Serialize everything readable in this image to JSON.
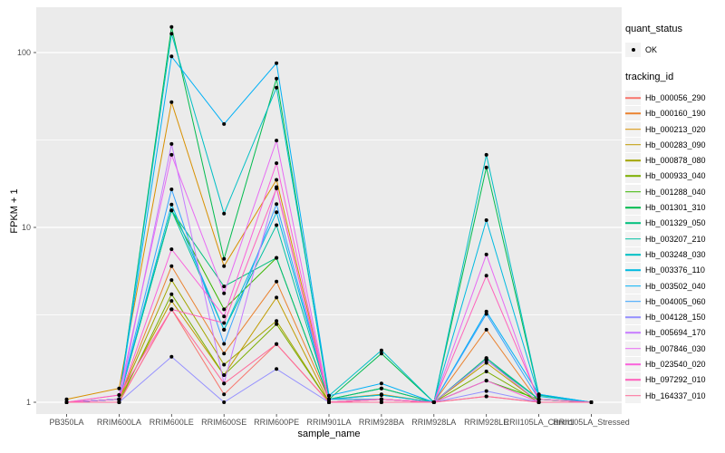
{
  "chart_data": {
    "type": "line",
    "title": "",
    "xlabel": "sample_name",
    "ylabel": "FPKM + 1",
    "y_scale": "log10",
    "y_ticks": [
      1,
      10,
      100
    ],
    "y_minor": [
      3.162,
      31.62
    ],
    "ylim": [
      0.86,
      180
    ],
    "panel_bg": "#EBEBEB",
    "grid_color": "#FFFFFF",
    "point_color": "#000000",
    "axis_text_color": "#4D4D4D",
    "categories": [
      "PB350LA",
      "RRIM600LA",
      "RRIM600LE",
      "RRIM600SE",
      "RRIM600PE",
      "RRIM901LA",
      "RRIM928BA",
      "RRIM928LA",
      "RRIM928LE",
      "RRII105LA_Control",
      "RRII105LA_Stressed"
    ],
    "series": [
      {
        "name": "Hb_000056_290",
        "color": "#F8766D",
        "values": [
          1,
          1,
          3.4,
          1.11,
          2.15,
          1,
          1,
          1,
          1.08,
          1,
          1
        ]
      },
      {
        "name": "Hb_000160_190",
        "color": "#EA8331",
        "values": [
          1,
          1.04,
          6.0,
          1.9,
          4.9,
          1.04,
          1.04,
          1,
          2.6,
          1,
          1
        ]
      },
      {
        "name": "Hb_000213_020",
        "color": "#D89000",
        "values": [
          1.04,
          1.2,
          52,
          6.0,
          18.7,
          1.04,
          1.11,
          1,
          1.79,
          1.04,
          1
        ]
      },
      {
        "name": "Hb_000283_090",
        "color": "#C09B00",
        "values": [
          1,
          1.04,
          3.8,
          1.43,
          3.97,
          1,
          1.04,
          1,
          1.68,
          1,
          1
        ]
      },
      {
        "name": "Hb_000878_080",
        "color": "#A3A500",
        "values": [
          1,
          1.04,
          5.0,
          1.64,
          2.92,
          1,
          1.04,
          1,
          1.75,
          1,
          1
        ]
      },
      {
        "name": "Hb_000933_040",
        "color": "#7CAE00",
        "values": [
          1,
          1,
          4.15,
          1.43,
          2.8,
          1,
          1.04,
          1,
          1.5,
          1,
          1
        ]
      },
      {
        "name": "Hb_001288_040",
        "color": "#39B600",
        "values": [
          1,
          1.04,
          12.5,
          3.4,
          6.7,
          1.04,
          1.2,
          1,
          1.33,
          1.04,
          1
        ]
      },
      {
        "name": "Hb_001301_310",
        "color": "#00BB4E",
        "values": [
          1,
          1.04,
          140,
          6.6,
          71,
          1.04,
          1.9,
          1,
          22,
          1.1,
          1
        ]
      },
      {
        "name": "Hb_001329_050",
        "color": "#00BF7D",
        "values": [
          1,
          1.04,
          12.5,
          4.6,
          6.7,
          1.04,
          1.2,
          1,
          1.75,
          1.04,
          1
        ]
      },
      {
        "name": "Hb_003207_210",
        "color": "#00C1A3",
        "values": [
          1,
          1.04,
          12.5,
          2.6,
          10.3,
          1.04,
          1.1,
          1,
          1.79,
          1.04,
          1
        ]
      },
      {
        "name": "Hb_003248_030",
        "color": "#00BFC4",
        "values": [
          1,
          1.04,
          128,
          12,
          63,
          1.09,
          1.98,
          1,
          26,
          1.11,
          1
        ]
      },
      {
        "name": "Hb_003376_110",
        "color": "#00BAE0",
        "values": [
          1,
          1.04,
          13.5,
          2.6,
          12.2,
          1.04,
          1.1,
          1,
          11,
          1.08,
          1
        ]
      },
      {
        "name": "Hb_003502_040",
        "color": "#00B0F6",
        "values": [
          1,
          1.04,
          95,
          39,
          87,
          1.09,
          1.28,
          1,
          3.3,
          1.11,
          1
        ]
      },
      {
        "name": "Hb_004005_060",
        "color": "#35A2FF",
        "values": [
          1,
          1.04,
          16.5,
          2.16,
          13.6,
          1.04,
          1.04,
          1,
          3.2,
          1.04,
          1
        ]
      },
      {
        "name": "Hb_004128_150",
        "color": "#9590FF",
        "values": [
          1,
          1,
          1.82,
          1,
          1.55,
          1,
          1,
          1,
          1.16,
          1,
          1
        ]
      },
      {
        "name": "Hb_005694_170",
        "color": "#C77CFF",
        "values": [
          1,
          1,
          30,
          1.28,
          17,
          1,
          1,
          1,
          1.75,
          1,
          1
        ]
      },
      {
        "name": "Hb_007846_030",
        "color": "#E76BF3",
        "values": [
          1,
          1.1,
          26,
          4.2,
          31.4,
          1,
          1.04,
          1,
          7,
          1,
          1
        ]
      },
      {
        "name": "Hb_023540_020",
        "color": "#FA62DB",
        "values": [
          1,
          1.04,
          7.5,
          3.1,
          23.3,
          1,
          1.04,
          1,
          1.33,
          1,
          1
        ]
      },
      {
        "name": "Hb_097292_010",
        "color": "#FF62BC",
        "values": [
          1,
          1.1,
          3.4,
          2.84,
          16.7,
          1,
          1.04,
          1,
          5.3,
          1.04,
          1
        ]
      },
      {
        "name": "Hb_164337_010",
        "color": "#FF6A98",
        "values": [
          1,
          1,
          3.4,
          1.28,
          2.15,
          1,
          1,
          1,
          1.08,
          1,
          1
        ]
      }
    ]
  },
  "legend": {
    "quant_title": "quant_status",
    "quant_items": [
      {
        "label": "OK",
        "symbol": "point"
      }
    ],
    "tracking_title": "tracking_id"
  }
}
